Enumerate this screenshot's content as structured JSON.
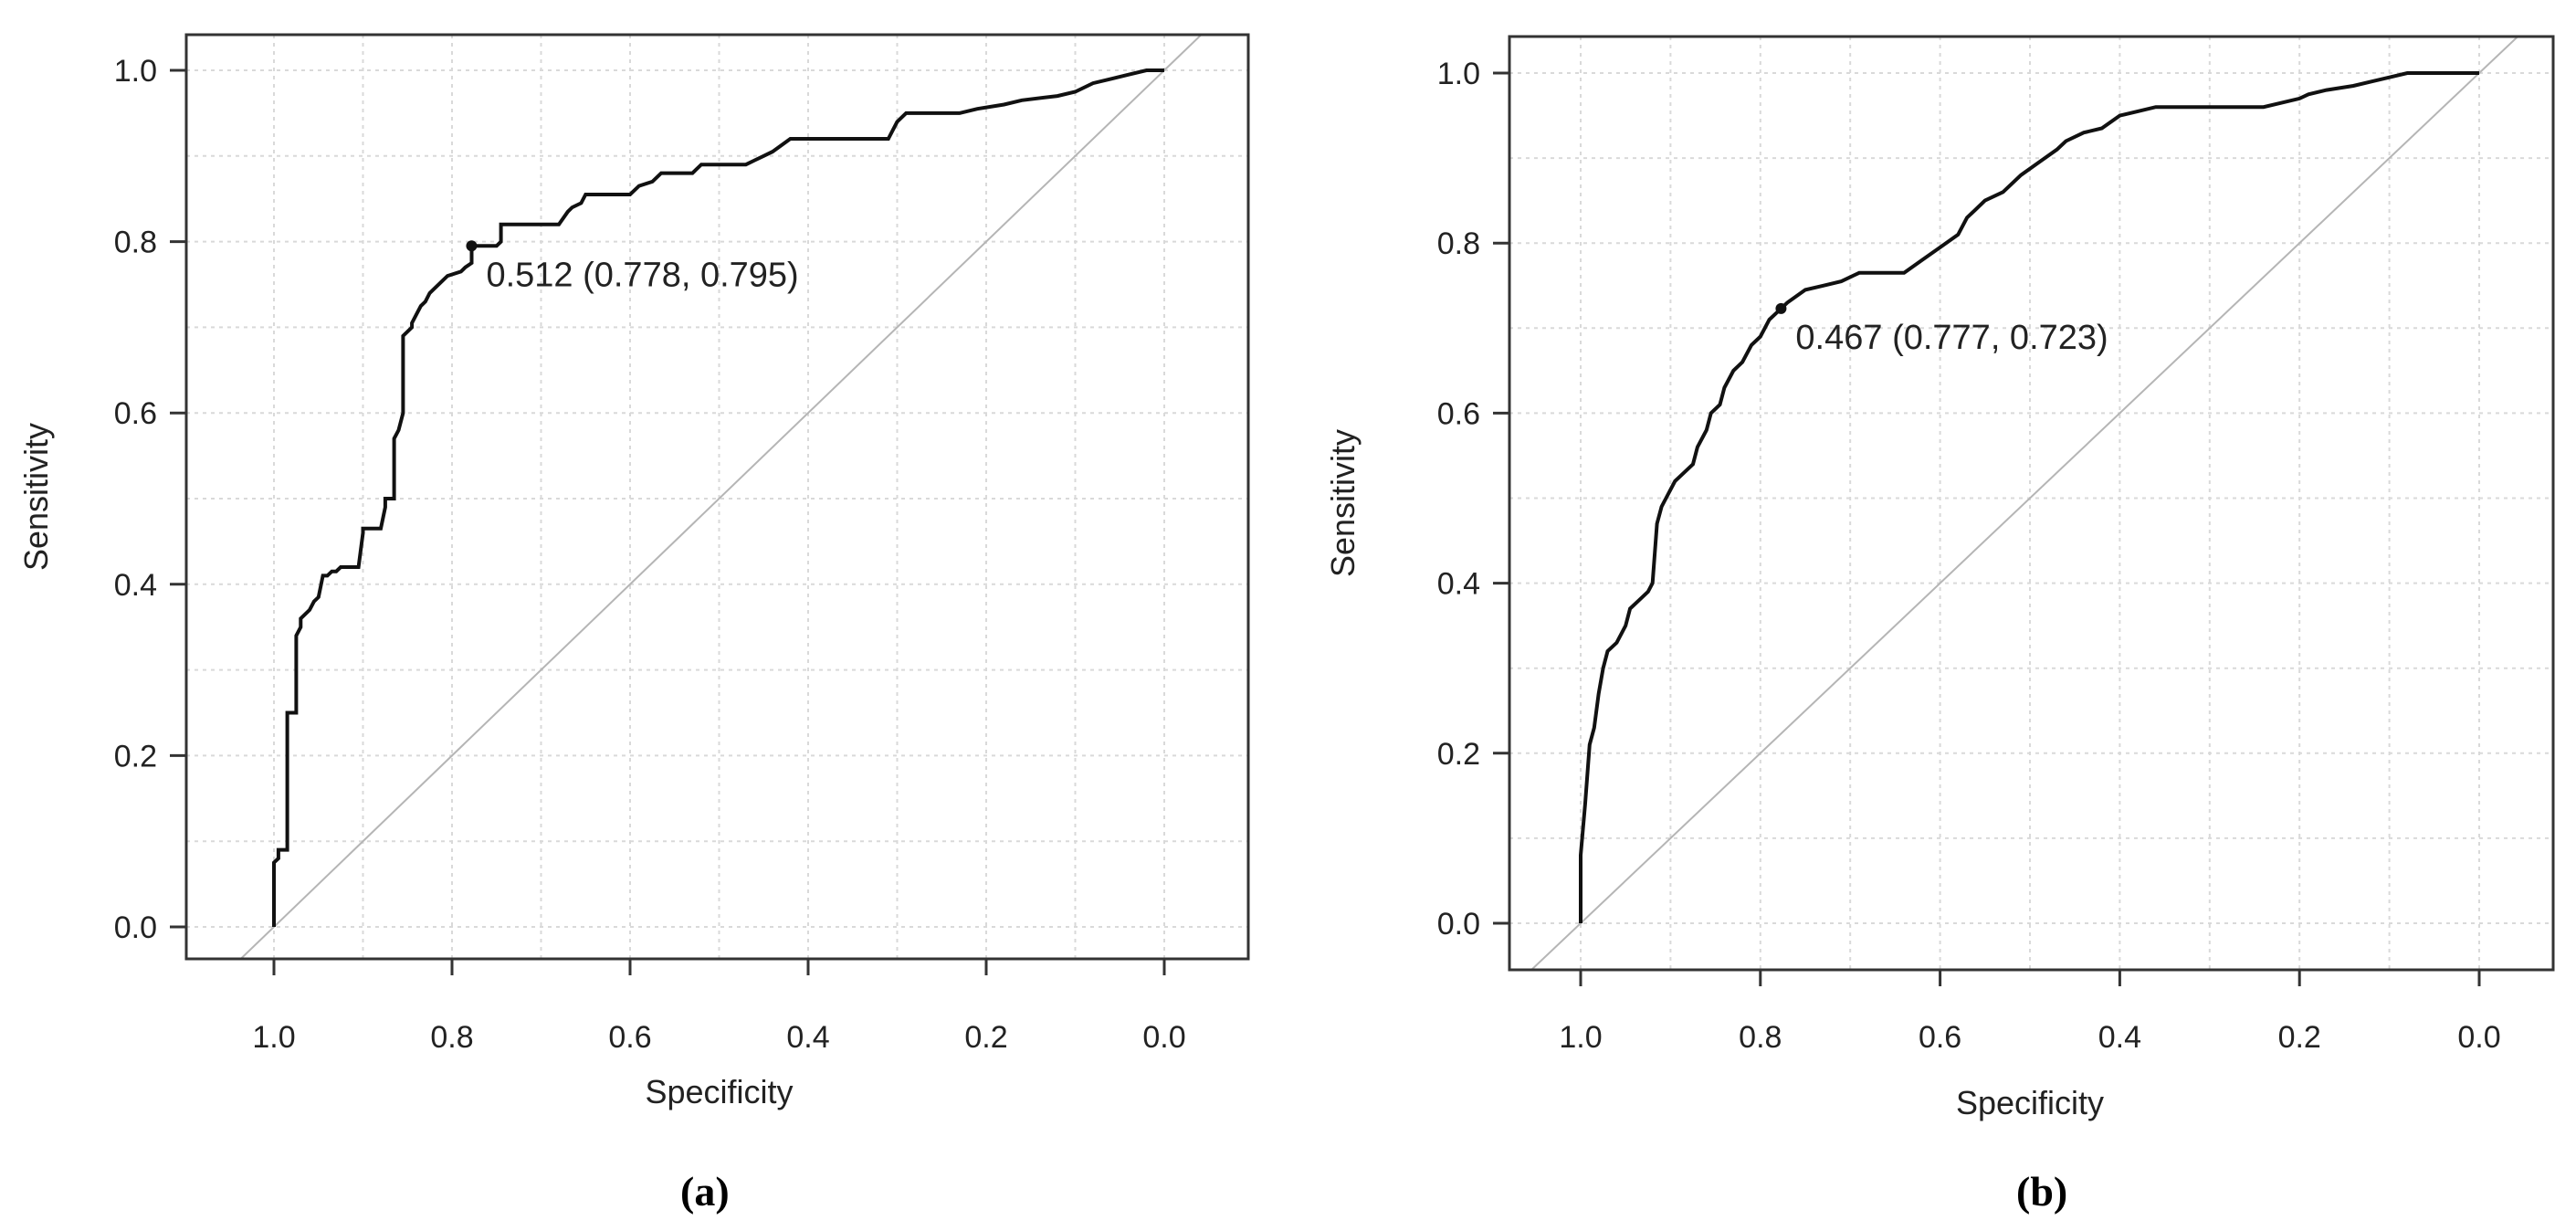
{
  "panels": [
    {
      "label": "(a)"
    },
    {
      "label": "(b)"
    }
  ],
  "chart_data": [
    {
      "type": "line",
      "title": "",
      "xlabel": "Specificity",
      "ylabel": "Sensitivity",
      "xlim": [
        1.1,
        -0.1
      ],
      "ylim": [
        0.0,
        1.0
      ],
      "x_reversed": true,
      "grid": true,
      "x_ticks": [
        "1.0",
        "0.8",
        "0.6",
        "0.4",
        "0.2",
        "0.0"
      ],
      "y_ticks": [
        "0.0",
        "0.2",
        "0.4",
        "0.6",
        "0.8",
        "1.0"
      ],
      "reference_line": {
        "from": [
          1.0,
          0.0
        ],
        "to": [
          0.0,
          1.0
        ]
      },
      "threshold_point": {
        "specificity": 0.778,
        "sensitivity": 0.795,
        "label": "0.512 (0.778, 0.795)"
      },
      "series": [
        {
          "specificity": [
            1.0,
            1.0,
            0.995,
            0.995,
            0.985,
            0.985,
            0.975,
            0.975,
            0.97,
            0.97,
            0.96,
            0.955,
            0.95,
            0.945,
            0.94,
            0.935,
            0.93,
            0.925,
            0.905,
            0.9,
            0.9,
            0.88,
            0.875,
            0.875,
            0.865,
            0.865,
            0.86,
            0.855,
            0.855,
            0.845,
            0.845,
            0.84,
            0.835,
            0.83,
            0.825,
            0.82,
            0.81,
            0.805,
            0.79,
            0.785,
            0.778,
            0.778,
            0.75,
            0.745,
            0.745,
            0.68,
            0.67,
            0.665,
            0.655,
            0.65,
            0.6,
            0.59,
            0.575,
            0.565,
            0.53,
            0.52,
            0.47,
            0.46,
            0.45,
            0.44,
            0.42,
            0.31,
            0.3,
            0.29,
            0.23,
            0.21,
            0.18,
            0.16,
            0.12,
            0.1,
            0.08,
            0.06,
            0.04,
            0.02,
            0.0
          ],
          "sensitivity": [
            0.0,
            0.075,
            0.08,
            0.09,
            0.09,
            0.25,
            0.25,
            0.34,
            0.35,
            0.36,
            0.37,
            0.38,
            0.385,
            0.41,
            0.41,
            0.415,
            0.415,
            0.42,
            0.42,
            0.46,
            0.465,
            0.465,
            0.49,
            0.5,
            0.5,
            0.57,
            0.58,
            0.6,
            0.69,
            0.7,
            0.705,
            0.715,
            0.725,
            0.73,
            0.74,
            0.745,
            0.755,
            0.76,
            0.765,
            0.77,
            0.775,
            0.795,
            0.795,
            0.8,
            0.82,
            0.82,
            0.835,
            0.84,
            0.845,
            0.855,
            0.855,
            0.865,
            0.87,
            0.88,
            0.88,
            0.89,
            0.89,
            0.895,
            0.9,
            0.905,
            0.92,
            0.92,
            0.94,
            0.95,
            0.95,
            0.955,
            0.96,
            0.965,
            0.97,
            0.975,
            0.985,
            0.99,
            0.995,
            1.0,
            1.0
          ]
        }
      ]
    },
    {
      "type": "line",
      "title": "",
      "xlabel": "Specificity",
      "ylabel": "Sensitivity",
      "xlim": [
        1.1,
        -0.1
      ],
      "ylim": [
        0.0,
        1.0
      ],
      "x_reversed": true,
      "grid": true,
      "x_ticks": [
        "1.0",
        "0.8",
        "0.6",
        "0.4",
        "0.2",
        "0.0"
      ],
      "y_ticks": [
        "0.0",
        "0.2",
        "0.4",
        "0.6",
        "0.8",
        "1.0"
      ],
      "reference_line": {
        "from": [
          1.0,
          0.0
        ],
        "to": [
          0.0,
          1.0
        ]
      },
      "threshold_point": {
        "specificity": 0.777,
        "sensitivity": 0.723,
        "label": "0.467 (0.777, 0.723)"
      },
      "series": [
        {
          "specificity": [
            1.0,
            1.0,
            0.995,
            0.99,
            0.985,
            0.98,
            0.975,
            0.97,
            0.96,
            0.95,
            0.945,
            0.935,
            0.925,
            0.92,
            0.915,
            0.91,
            0.905,
            0.895,
            0.885,
            0.875,
            0.87,
            0.86,
            0.855,
            0.845,
            0.84,
            0.83,
            0.82,
            0.81,
            0.8,
            0.79,
            0.78,
            0.777,
            0.77,
            0.75,
            0.73,
            0.71,
            0.69,
            0.67,
            0.64,
            0.62,
            0.6,
            0.58,
            0.57,
            0.56,
            0.55,
            0.53,
            0.51,
            0.49,
            0.47,
            0.46,
            0.44,
            0.42,
            0.4,
            0.38,
            0.36,
            0.34,
            0.28,
            0.24,
            0.22,
            0.2,
            0.19,
            0.17,
            0.14,
            0.12,
            0.1,
            0.08,
            0.06,
            0.04,
            0.0
          ],
          "sensitivity": [
            0.0,
            0.08,
            0.14,
            0.21,
            0.23,
            0.27,
            0.3,
            0.32,
            0.33,
            0.35,
            0.37,
            0.38,
            0.39,
            0.4,
            0.47,
            0.49,
            0.5,
            0.52,
            0.53,
            0.54,
            0.56,
            0.58,
            0.6,
            0.61,
            0.63,
            0.65,
            0.66,
            0.68,
            0.69,
            0.71,
            0.72,
            0.723,
            0.73,
            0.745,
            0.75,
            0.755,
            0.765,
            0.765,
            0.765,
            0.78,
            0.795,
            0.81,
            0.83,
            0.84,
            0.85,
            0.86,
            0.88,
            0.895,
            0.91,
            0.92,
            0.93,
            0.935,
            0.95,
            0.955,
            0.96,
            0.96,
            0.96,
            0.96,
            0.965,
            0.97,
            0.975,
            0.98,
            0.985,
            0.99,
            0.995,
            1.0,
            1.0,
            1.0,
            1.0
          ]
        }
      ]
    }
  ]
}
